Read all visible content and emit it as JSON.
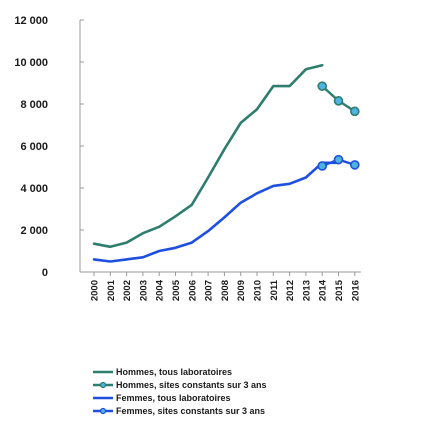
{
  "chart_data": {
    "type": "line",
    "title": "",
    "xlabel": "",
    "ylabel": "",
    "x": [
      "2000",
      "2001",
      "2002",
      "2003",
      "2004",
      "2005",
      "2006",
      "2007",
      "2008",
      "2009",
      "2010",
      "2011",
      "2012",
      "2013",
      "2014",
      "2015",
      "2016"
    ],
    "ylim": [
      0,
      12000
    ],
    "yticks": [
      0,
      2000,
      4000,
      6000,
      8000,
      10000,
      12000
    ],
    "ytick_labels": [
      "0",
      "2 000",
      "4 000",
      "6 000",
      "8 000",
      "10 000",
      "12 000"
    ],
    "grid": false,
    "legend_position": "bottom",
    "series": [
      {
        "name": "Hommes, tous laboratoires",
        "color": "#2e7d6e",
        "marker": "none",
        "values": [
          1350,
          1200,
          1400,
          1850,
          2150,
          2650,
          3200,
          4500,
          5850,
          7100,
          7750,
          8850,
          8850,
          9650,
          9850,
          null,
          null
        ]
      },
      {
        "name": "Hommes, sites constants sur 3 ans",
        "color": "#2e7d6e",
        "marker": "circle",
        "values": [
          null,
          null,
          null,
          null,
          null,
          null,
          null,
          null,
          null,
          null,
          null,
          null,
          null,
          null,
          8850,
          8150,
          7650
        ]
      },
      {
        "name": "Femmes, tous laboratoires",
        "color": "#1f4fe0",
        "marker": "none",
        "values": [
          600,
          500,
          600,
          700,
          1000,
          1150,
          1400,
          1950,
          2600,
          3300,
          3750,
          4100,
          4200,
          4500,
          5200,
          5200,
          null
        ]
      },
      {
        "name": "Femmes, sites constants sur 3 ans",
        "color": "#1f4fe0",
        "marker": "circle",
        "values": [
          null,
          null,
          null,
          null,
          null,
          null,
          null,
          null,
          null,
          null,
          null,
          null,
          null,
          null,
          5050,
          5350,
          5100
        ]
      }
    ]
  }
}
